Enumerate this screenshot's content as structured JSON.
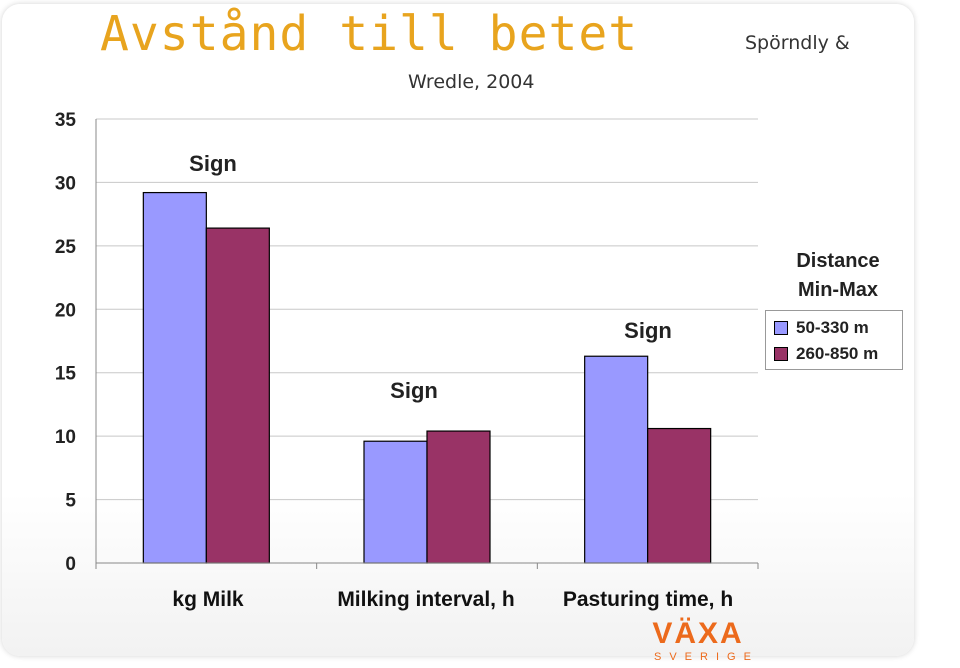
{
  "slide": {
    "title": "Avstånd till betet",
    "source_line1": "Spörndly &",
    "source_line2": "Wredle, 2004"
  },
  "chart_data": {
    "type": "bar",
    "categories": [
      "kg Milk",
      "Milking interval, h",
      "Pasturing time, h"
    ],
    "series": [
      {
        "name": "50-330 m",
        "color": "#9999ff",
        "values": [
          29.2,
          9.6,
          16.3
        ]
      },
      {
        "name": "260-850 m",
        "color": "#993366",
        "values": [
          26.4,
          10.4,
          10.6
        ]
      }
    ],
    "ylim": [
      0,
      35
    ],
    "yticks": [
      "0",
      "5",
      "10",
      "15",
      "20",
      "25",
      "30",
      "35"
    ],
    "grid": true,
    "legend": {
      "title_line1": "Distance",
      "title_line2": "Min-Max",
      "placement": "right"
    },
    "annotations": [
      "Sign",
      "Sign",
      "Sign"
    ],
    "xlabel": "",
    "ylabel": ""
  },
  "logo": {
    "word": "VÄXA",
    "sub": "SVERIGE",
    "color": "#ec6a1c"
  }
}
